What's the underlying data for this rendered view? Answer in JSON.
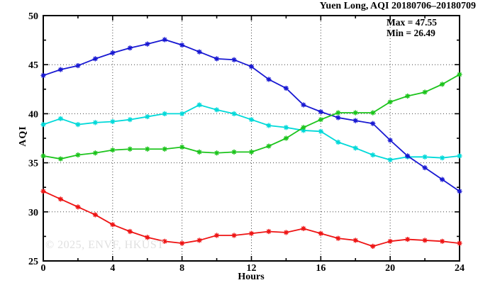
{
  "chart_data": {
    "type": "line",
    "title": "Yuen Long, AQI 20180706–20180709",
    "xlabel": "Hours",
    "ylabel": "AQI",
    "xlim": [
      0,
      24
    ],
    "ylim": [
      25,
      50
    ],
    "x_major_ticks": [
      0,
      4,
      8,
      12,
      16,
      20,
      24
    ],
    "x_minor_step": 2,
    "y_major_ticks": [
      25,
      30,
      35,
      40,
      45,
      50
    ],
    "y_minor_step": 2.5,
    "grid": "dotted-at-major-ticks",
    "legend": "none",
    "annotations": [
      "Max = 47.55",
      "Min = 26.49"
    ],
    "watermark": "© 2025, ENVF, HKUST",
    "marker": "asterisk",
    "x": [
      0,
      1,
      2,
      3,
      4,
      5,
      6,
      7,
      8,
      9,
      10,
      11,
      12,
      13,
      14,
      15,
      16,
      17,
      18,
      19,
      20,
      21,
      22,
      23,
      24
    ],
    "series": [
      {
        "name": "aqi-red",
        "color": "#ee1414",
        "values": [
          32.1,
          31.3,
          30.5,
          29.7,
          28.7,
          28.0,
          27.4,
          27.0,
          26.8,
          27.1,
          27.6,
          27.6,
          27.8,
          28.0,
          27.9,
          28.3,
          27.8,
          27.3,
          27.1,
          26.49,
          27.0,
          27.2,
          27.1,
          27.0,
          26.8
        ]
      },
      {
        "name": "aqi-cyan",
        "color": "#00d9d9",
        "values": [
          38.9,
          39.5,
          38.9,
          39.1,
          39.2,
          39.4,
          39.7,
          40.0,
          40.0,
          40.9,
          40.4,
          40.0,
          39.4,
          38.8,
          38.6,
          38.3,
          38.2,
          37.1,
          36.5,
          35.8,
          35.3,
          35.6,
          35.6,
          35.5,
          35.7
        ]
      },
      {
        "name": "aqi-blue",
        "color": "#1818d2",
        "values": [
          43.9,
          44.5,
          44.9,
          45.6,
          46.2,
          46.7,
          47.1,
          47.55,
          47.0,
          46.3,
          45.6,
          45.5,
          44.8,
          43.5,
          42.6,
          40.9,
          40.2,
          39.6,
          39.3,
          39.0,
          37.3,
          35.7,
          34.5,
          33.3,
          32.1
        ]
      },
      {
        "name": "aqi-green",
        "color": "#1cc41c",
        "values": [
          35.7,
          35.4,
          35.8,
          36.0,
          36.3,
          36.4,
          36.4,
          36.4,
          36.6,
          36.1,
          36.0,
          36.1,
          36.1,
          36.7,
          37.5,
          38.6,
          39.4,
          40.1,
          40.1,
          40.1,
          41.2,
          41.8,
          42.2,
          43.0,
          44.0
        ]
      }
    ],
    "axis_color": "#000000",
    "grid_color": "#444444",
    "background_color": "#ffffff"
  }
}
